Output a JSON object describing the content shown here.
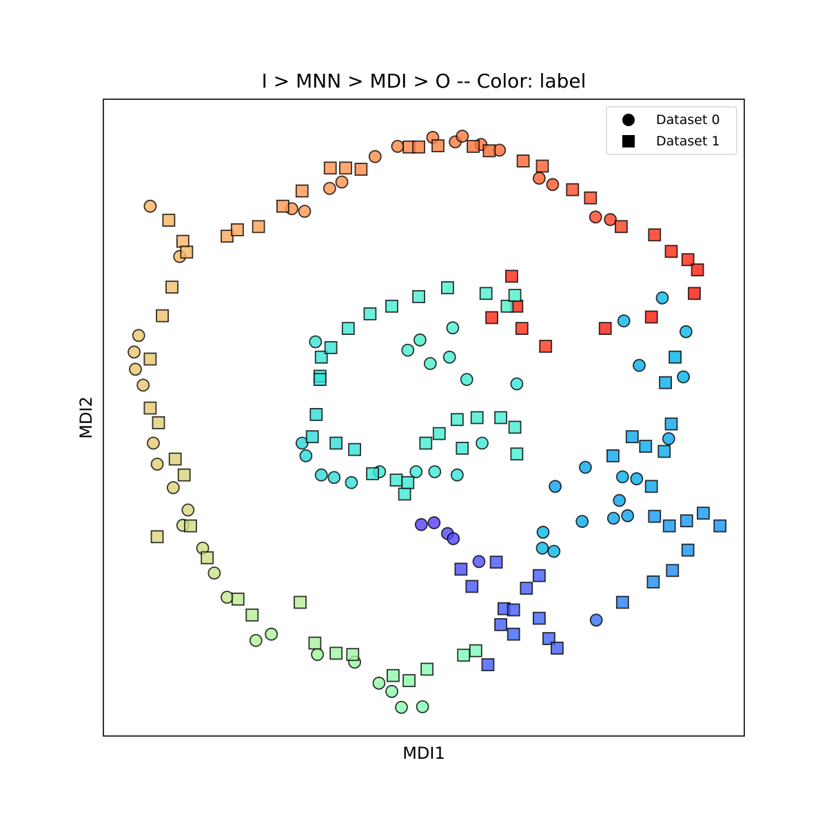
{
  "chart_data": {
    "type": "scatter",
    "title": "I > MNN > MDI > O -- Color: label",
    "xlabel": "MDI1",
    "ylabel": "MDI2",
    "xlim": [
      0,
      10
    ],
    "ylim": [
      0,
      10
    ],
    "ticks_visible": false,
    "grid": false,
    "legend_position": "top-right",
    "color_encoding": "label (rainbow colormap)",
    "colormap": [
      "#8000ff",
      "#4062fa",
      "#01b3eb",
      "#40ecd4",
      "#80ffb4",
      "#c0eb8d",
      "#ffb360",
      "#ff6230",
      "#ff0000"
    ],
    "marker_edge_color": "#000000",
    "series": [
      {
        "name": "Dataset 0",
        "marker": "circle",
        "points": [
          [
            0.73,
            8.32,
            0.75
          ],
          [
            1.19,
            7.53,
            0.74
          ],
          [
            0.5,
            5.76,
            0.71
          ],
          [
            0.48,
            6.03,
            0.71
          ],
          [
            0.55,
            6.29,
            0.71
          ],
          [
            0.62,
            5.51,
            0.71
          ],
          [
            0.78,
            4.6,
            0.7
          ],
          [
            0.84,
            4.27,
            0.69
          ],
          [
            1.09,
            3.9,
            0.68
          ],
          [
            1.32,
            3.55,
            0.67
          ],
          [
            1.24,
            3.31,
            0.66
          ],
          [
            1.55,
            2.95,
            0.65
          ],
          [
            1.73,
            2.56,
            0.64
          ],
          [
            1.93,
            2.18,
            0.63
          ],
          [
            2.38,
            1.5,
            0.6
          ],
          [
            2.62,
            1.6,
            0.59
          ],
          [
            3.34,
            1.28,
            0.57
          ],
          [
            3.92,
            1.16,
            0.55
          ],
          [
            4.3,
            0.83,
            0.53
          ],
          [
            4.5,
            0.7,
            0.52
          ],
          [
            4.65,
            0.45,
            0.52
          ],
          [
            4.98,
            0.46,
            0.51
          ],
          [
            2.94,
            8.28,
            0.79
          ],
          [
            3.14,
            8.24,
            0.79
          ],
          [
            3.53,
            8.6,
            0.79
          ],
          [
            3.72,
            8.7,
            0.8
          ],
          [
            4.24,
            9.1,
            0.81
          ],
          [
            4.59,
            9.26,
            0.82
          ],
          [
            5.14,
            9.4,
            0.83
          ],
          [
            5.49,
            9.33,
            0.84
          ],
          [
            5.6,
            9.42,
            0.84
          ],
          [
            5.89,
            9.29,
            0.85
          ],
          [
            6.18,
            9.2,
            0.86
          ],
          [
            6.8,
            8.76,
            0.88
          ],
          [
            7.01,
            8.66,
            0.89
          ],
          [
            7.68,
            8.15,
            0.91
          ],
          [
            7.91,
            8.11,
            0.92
          ],
          [
            3.31,
            6.19,
            0.36
          ],
          [
            3.1,
            4.6,
            0.33
          ],
          [
            3.16,
            4.4,
            0.33
          ],
          [
            3.4,
            4.1,
            0.34
          ],
          [
            3.6,
            4.06,
            0.34
          ],
          [
            3.87,
            3.98,
            0.35
          ],
          [
            4.75,
            6.06,
            0.39
          ],
          [
            4.94,
            6.22,
            0.39
          ],
          [
            5.45,
            6.41,
            0.4
          ],
          [
            5.4,
            5.95,
            0.39
          ],
          [
            5.1,
            5.85,
            0.39
          ],
          [
            4.31,
            4.15,
            0.36
          ],
          [
            4.88,
            4.15,
            0.37
          ],
          [
            5.17,
            4.15,
            0.37
          ],
          [
            5.52,
            4.1,
            0.36
          ],
          [
            5.91,
            4.6,
            0.37
          ],
          [
            5.67,
            5.6,
            0.37
          ],
          [
            6.45,
            5.53,
            0.36
          ],
          [
            7.05,
            3.92,
            0.22
          ],
          [
            7.47,
            3.37,
            0.24
          ],
          [
            7.96,
            3.42,
            0.23
          ],
          [
            8.05,
            3.7,
            0.22
          ],
          [
            8.18,
            3.46,
            0.22
          ],
          [
            6.86,
            3.2,
            0.26
          ],
          [
            6.85,
            2.95,
            0.26
          ],
          [
            7.03,
            2.9,
            0.26
          ],
          [
            7.52,
            4.22,
            0.23
          ],
          [
            8.12,
            6.52,
            0.26
          ],
          [
            8.36,
            5.82,
            0.24
          ],
          [
            8.82,
            4.67,
            0.23
          ],
          [
            8.32,
            4.04,
            0.24
          ],
          [
            8.1,
            4.07,
            0.24
          ],
          [
            8.72,
            6.88,
            0.27
          ],
          [
            9.09,
            6.35,
            0.26
          ],
          [
            9.05,
            5.64,
            0.25
          ],
          [
            4.96,
            3.32,
            0.08
          ],
          [
            5.16,
            3.35,
            0.08
          ],
          [
            5.37,
            3.18,
            0.09
          ],
          [
            5.46,
            3.1,
            0.09
          ],
          [
            5.86,
            2.74,
            0.1
          ],
          [
            7.69,
            1.82,
            0.15
          ]
        ]
      },
      {
        "name": "Dataset 1",
        "marker": "square",
        "points": [
          [
            1.02,
            8.1,
            0.75
          ],
          [
            1.24,
            7.77,
            0.74
          ],
          [
            1.3,
            7.6,
            0.74
          ],
          [
            1.07,
            7.05,
            0.72
          ],
          [
            0.92,
            6.6,
            0.72
          ],
          [
            0.73,
            5.92,
            0.71
          ],
          [
            0.73,
            5.15,
            0.7
          ],
          [
            0.86,
            4.92,
            0.69
          ],
          [
            1.12,
            4.35,
            0.68
          ],
          [
            1.26,
            4.1,
            0.67
          ],
          [
            0.84,
            3.13,
            0.67
          ],
          [
            1.36,
            3.3,
            0.66
          ],
          [
            1.62,
            2.8,
            0.65
          ],
          [
            2.1,
            2.15,
            0.62
          ],
          [
            2.32,
            1.9,
            0.61
          ],
          [
            3.3,
            1.46,
            0.58
          ],
          [
            3.63,
            1.3,
            0.56
          ],
          [
            3.89,
            1.28,
            0.56
          ],
          [
            4.52,
            0.95,
            0.53
          ],
          [
            4.77,
            0.87,
            0.52
          ],
          [
            5.05,
            1.05,
            0.51
          ],
          [
            5.62,
            1.27,
            0.49
          ],
          [
            5.81,
            1.34,
            0.49
          ],
          [
            3.07,
            2.1,
            0.61
          ],
          [
            1.93,
            7.85,
            0.77
          ],
          [
            2.09,
            7.95,
            0.77
          ],
          [
            2.42,
            8.0,
            0.78
          ],
          [
            2.8,
            8.32,
            0.79
          ],
          [
            3.1,
            8.56,
            0.79
          ],
          [
            3.54,
            8.92,
            0.8
          ],
          [
            3.78,
            8.92,
            0.8
          ],
          [
            4.02,
            8.9,
            0.81
          ],
          [
            4.77,
            9.25,
            0.82
          ],
          [
            4.92,
            9.25,
            0.83
          ],
          [
            5.22,
            9.27,
            0.83
          ],
          [
            5.77,
            9.26,
            0.85
          ],
          [
            6.02,
            9.19,
            0.86
          ],
          [
            6.55,
            9.03,
            0.87
          ],
          [
            6.85,
            8.95,
            0.88
          ],
          [
            7.32,
            8.58,
            0.9
          ],
          [
            7.6,
            8.45,
            0.91
          ],
          [
            8.08,
            8.0,
            0.92
          ],
          [
            8.6,
            7.87,
            0.94
          ],
          [
            8.86,
            7.61,
            0.95
          ],
          [
            9.12,
            7.48,
            0.95
          ],
          [
            9.27,
            7.32,
            0.96
          ],
          [
            9.22,
            6.95,
            0.97
          ],
          [
            8.55,
            6.58,
            0.97
          ],
          [
            7.83,
            6.4,
            0.96
          ],
          [
            6.9,
            6.12,
            0.93
          ],
          [
            6.53,
            6.4,
            0.94
          ],
          [
            6.45,
            6.75,
            0.95
          ],
          [
            6.37,
            7.22,
            0.95
          ],
          [
            6.06,
            6.57,
            0.95
          ],
          [
            3.38,
            5.65,
            0.35
          ],
          [
            3.4,
            5.95,
            0.36
          ],
          [
            3.55,
            6.1,
            0.36
          ],
          [
            3.82,
            6.4,
            0.37
          ],
          [
            4.16,
            6.63,
            0.38
          ],
          [
            4.5,
            6.75,
            0.38
          ],
          [
            4.92,
            6.9,
            0.39
          ],
          [
            5.37,
            7.04,
            0.4
          ],
          [
            5.97,
            6.95,
            0.4
          ],
          [
            6.3,
            6.75,
            0.41
          ],
          [
            6.42,
            6.92,
            0.41
          ],
          [
            3.38,
            5.6,
            0.35
          ],
          [
            3.32,
            5.05,
            0.34
          ],
          [
            3.26,
            4.7,
            0.34
          ],
          [
            3.63,
            4.6,
            0.34
          ],
          [
            3.92,
            4.5,
            0.35
          ],
          [
            4.2,
            4.12,
            0.36
          ],
          [
            4.57,
            4.02,
            0.37
          ],
          [
            4.7,
            3.8,
            0.37
          ],
          [
            4.75,
            3.98,
            0.37
          ],
          [
            5.03,
            4.6,
            0.38
          ],
          [
            5.24,
            4.75,
            0.38
          ],
          [
            5.52,
            4.97,
            0.38
          ],
          [
            5.83,
            5.0,
            0.38
          ],
          [
            6.2,
            5.0,
            0.38
          ],
          [
            6.42,
            4.85,
            0.38
          ],
          [
            6.45,
            4.43,
            0.38
          ],
          [
            5.6,
            4.52,
            0.37
          ],
          [
            7.95,
            4.4,
            0.23
          ],
          [
            8.25,
            4.7,
            0.23
          ],
          [
            8.86,
            4.9,
            0.23
          ],
          [
            8.55,
            3.92,
            0.23
          ],
          [
            8.6,
            3.45,
            0.21
          ],
          [
            8.83,
            3.3,
            0.21
          ],
          [
            9.1,
            3.38,
            0.21
          ],
          [
            9.36,
            3.5,
            0.21
          ],
          [
            9.62,
            3.3,
            0.2
          ],
          [
            9.12,
            2.92,
            0.2
          ],
          [
            8.88,
            2.6,
            0.19
          ],
          [
            8.58,
            2.42,
            0.19
          ],
          [
            8.1,
            2.1,
            0.17
          ],
          [
            8.77,
            5.55,
            0.24
          ],
          [
            8.92,
            5.95,
            0.25
          ],
          [
            8.46,
            4.55,
            0.24
          ],
          [
            8.75,
            4.47,
            0.24
          ],
          [
            6.13,
            2.73,
            0.11
          ],
          [
            5.58,
            2.62,
            0.1
          ],
          [
            5.75,
            2.35,
            0.11
          ],
          [
            6.4,
            1.6,
            0.13
          ],
          [
            6.8,
            1.85,
            0.13
          ],
          [
            6.95,
            1.53,
            0.13
          ],
          [
            6.6,
            2.32,
            0.12
          ],
          [
            6.8,
            2.52,
            0.12
          ],
          [
            7.08,
            1.38,
            0.12
          ],
          [
            6.25,
            2.0,
            0.12
          ],
          [
            6.4,
            1.98,
            0.12
          ],
          [
            6.2,
            1.75,
            0.12
          ],
          [
            6.0,
            1.12,
            0.12
          ]
        ]
      }
    ]
  }
}
